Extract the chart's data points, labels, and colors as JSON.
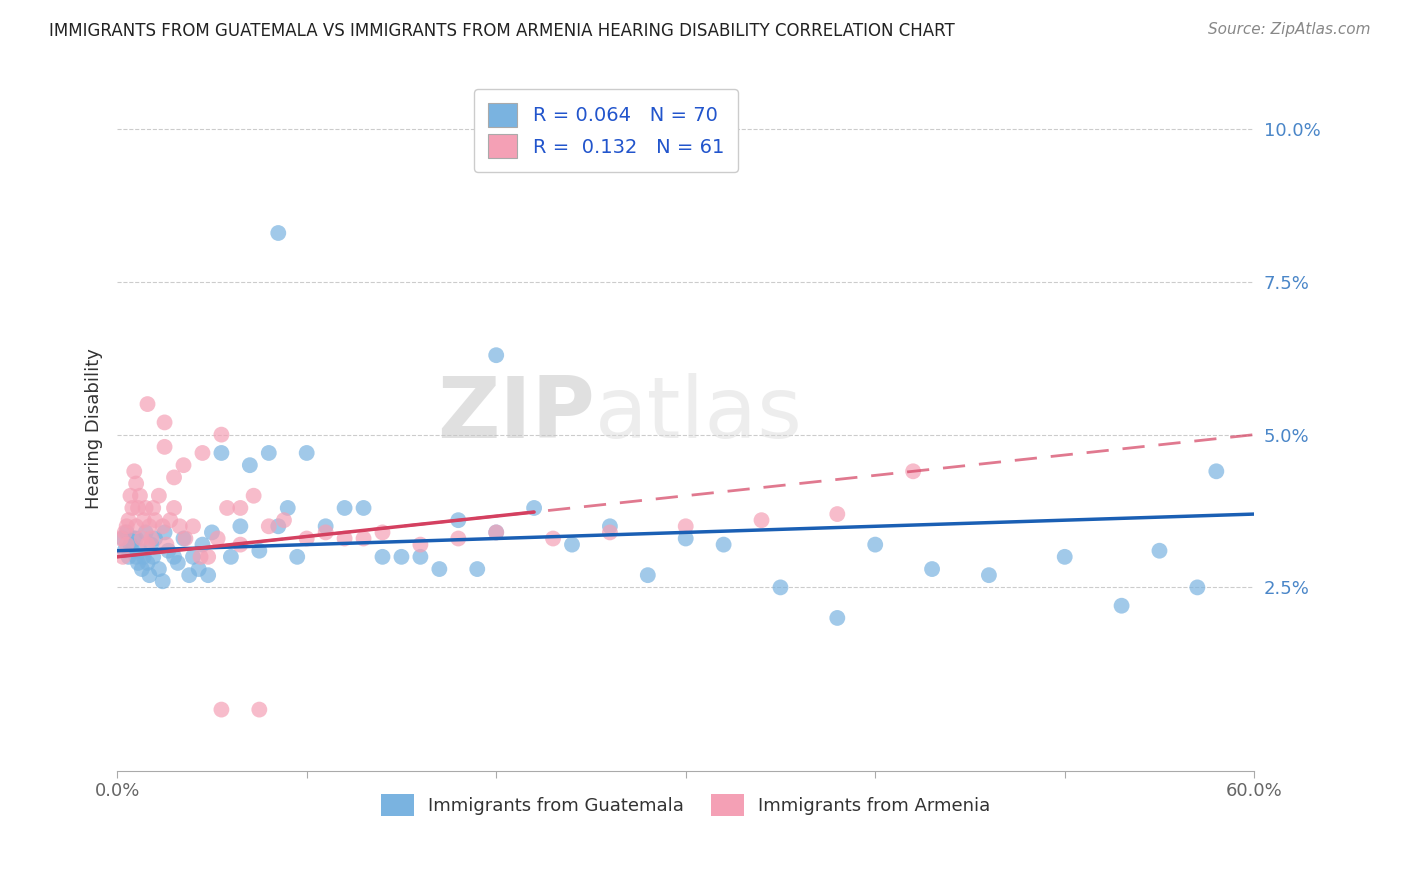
{
  "title": "IMMIGRANTS FROM GUATEMALA VS IMMIGRANTS FROM ARMENIA HEARING DISABILITY CORRELATION CHART",
  "source": "Source: ZipAtlas.com",
  "ylabel": "Hearing Disability",
  "xlim": [
    0.0,
    0.6
  ],
  "ylim": [
    -0.005,
    0.107
  ],
  "xticks": [
    0.0,
    0.1,
    0.2,
    0.3,
    0.4,
    0.5,
    0.6
  ],
  "xticklabels": [
    "0.0%",
    "",
    "",
    "",
    "",
    "",
    "60.0%"
  ],
  "yticks": [
    0.025,
    0.05,
    0.075,
    0.1
  ],
  "yticklabels": [
    "2.5%",
    "5.0%",
    "7.5%",
    "10.0%"
  ],
  "legend_labels": [
    "Immigrants from Guatemala",
    "Immigrants from Armenia"
  ],
  "r_guatemala": 0.064,
  "n_guatemala": 70,
  "r_armenia": 0.132,
  "n_armenia": 61,
  "color_guatemala": "#7ab3e0",
  "color_armenia": "#f4a0b5",
  "line_color_guatemala": "#1a5fb4",
  "line_color_armenia": "#d44060",
  "watermark_zip": "ZIP",
  "watermark_atlas": "atlas",
  "guatemala_x": [
    0.003,
    0.004,
    0.005,
    0.006,
    0.007,
    0.008,
    0.009,
    0.01,
    0.01,
    0.011,
    0.012,
    0.013,
    0.014,
    0.015,
    0.016,
    0.017,
    0.018,
    0.019,
    0.02,
    0.022,
    0.024,
    0.025,
    0.027,
    0.03,
    0.032,
    0.035,
    0.038,
    0.04,
    0.043,
    0.045,
    0.048,
    0.05,
    0.055,
    0.06,
    0.065,
    0.07,
    0.075,
    0.08,
    0.085,
    0.09,
    0.095,
    0.1,
    0.11,
    0.12,
    0.13,
    0.14,
    0.15,
    0.16,
    0.17,
    0.18,
    0.19,
    0.2,
    0.22,
    0.24,
    0.26,
    0.28,
    0.3,
    0.32,
    0.35,
    0.38,
    0.4,
    0.43,
    0.46,
    0.5,
    0.53,
    0.55,
    0.57,
    0.58,
    0.085,
    0.2
  ],
  "guatemala_y": [
    0.033,
    0.031,
    0.034,
    0.03,
    0.032,
    0.031,
    0.033,
    0.03,
    0.033,
    0.029,
    0.031,
    0.028,
    0.03,
    0.034,
    0.029,
    0.027,
    0.032,
    0.03,
    0.033,
    0.028,
    0.026,
    0.034,
    0.031,
    0.03,
    0.029,
    0.033,
    0.027,
    0.03,
    0.028,
    0.032,
    0.027,
    0.034,
    0.047,
    0.03,
    0.035,
    0.045,
    0.031,
    0.047,
    0.035,
    0.038,
    0.03,
    0.047,
    0.035,
    0.038,
    0.038,
    0.03,
    0.03,
    0.03,
    0.028,
    0.036,
    0.028,
    0.034,
    0.038,
    0.032,
    0.035,
    0.027,
    0.033,
    0.032,
    0.025,
    0.02,
    0.032,
    0.028,
    0.027,
    0.03,
    0.022,
    0.031,
    0.025,
    0.044,
    0.083,
    0.063
  ],
  "armenia_x": [
    0.002,
    0.003,
    0.004,
    0.005,
    0.005,
    0.006,
    0.007,
    0.008,
    0.009,
    0.01,
    0.01,
    0.011,
    0.012,
    0.013,
    0.014,
    0.015,
    0.016,
    0.017,
    0.018,
    0.019,
    0.02,
    0.022,
    0.024,
    0.026,
    0.028,
    0.03,
    0.033,
    0.036,
    0.04,
    0.044,
    0.048,
    0.053,
    0.058,
    0.065,
    0.072,
    0.08,
    0.088,
    0.1,
    0.11,
    0.12,
    0.13,
    0.14,
    0.16,
    0.18,
    0.2,
    0.23,
    0.26,
    0.3,
    0.34,
    0.38,
    0.42,
    0.016,
    0.025,
    0.03,
    0.035,
    0.045,
    0.055,
    0.065,
    0.025,
    0.055,
    0.075
  ],
  "armenia_y": [
    0.033,
    0.03,
    0.034,
    0.035,
    0.032,
    0.036,
    0.04,
    0.038,
    0.044,
    0.042,
    0.035,
    0.038,
    0.04,
    0.033,
    0.036,
    0.038,
    0.032,
    0.035,
    0.033,
    0.038,
    0.036,
    0.04,
    0.035,
    0.032,
    0.036,
    0.038,
    0.035,
    0.033,
    0.035,
    0.03,
    0.03,
    0.033,
    0.038,
    0.032,
    0.04,
    0.035,
    0.036,
    0.033,
    0.034,
    0.033,
    0.033,
    0.034,
    0.032,
    0.033,
    0.034,
    0.033,
    0.034,
    0.035,
    0.036,
    0.037,
    0.044,
    0.055,
    0.048,
    0.043,
    0.045,
    0.047,
    0.05,
    0.038,
    0.052,
    0.005,
    0.005
  ]
}
